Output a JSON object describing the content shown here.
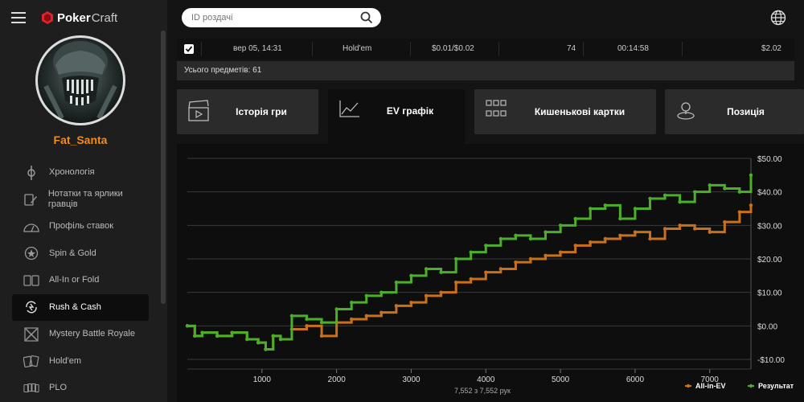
{
  "app": {
    "logo_brand": "Poker",
    "logo_suffix": "Craft"
  },
  "user": {
    "name": "Fat_Santa"
  },
  "sidebar": {
    "items": [
      {
        "label": "Хронологія",
        "icon": "timeline-icon"
      },
      {
        "label": "Нотатки та ярлики гравців",
        "icon": "notes-icon"
      },
      {
        "label": "Профіль ставок",
        "icon": "gauge-icon"
      },
      {
        "label": "Spin & Gold",
        "icon": "spin-icon"
      },
      {
        "label": "All-In or Fold",
        "icon": "cards-icon"
      },
      {
        "label": "Rush & Cash",
        "icon": "rush-icon",
        "active": true
      },
      {
        "label": "Mystery Battle Royale",
        "icon": "mystery-icon"
      },
      {
        "label": "Hold'em",
        "icon": "holdem-icon"
      },
      {
        "label": "PLO",
        "icon": "plo-icon"
      }
    ]
  },
  "search": {
    "placeholder": "ID роздачі",
    "value": ""
  },
  "hand_row": {
    "checked": true,
    "date": "вер 05, 14:31",
    "game": "Hold'em",
    "stakes": "$0.01/$0.02",
    "hands": "74",
    "duration": "00:14:58",
    "result": "$2.02"
  },
  "total_items": "Усього предметів: 61",
  "tabs": [
    {
      "label": "Історія гри",
      "icon": "clapper-icon"
    },
    {
      "label": "EV графік",
      "icon": "line-chart-icon",
      "active": true
    },
    {
      "label": "Кишенькові картки",
      "icon": "grid-icon"
    },
    {
      "label": "Позиція",
      "icon": "position-icon"
    }
  ],
  "footer": {
    "hand_count": "7,552 з 7,552 рук"
  },
  "colors": {
    "accent": "#f28c1e",
    "ev_series": "#c8711a",
    "result_series": "#4caf2b"
  },
  "chart_data": {
    "type": "line",
    "xlim": [
      0,
      7552
    ],
    "ylim": [
      -10,
      50
    ],
    "x_ticks": [
      1000,
      2000,
      3000,
      4000,
      5000,
      6000,
      7000
    ],
    "y_ticks": [
      -10,
      0,
      10,
      20,
      30,
      40,
      50
    ],
    "y_tick_labels": [
      "-$10.00",
      "$0.00",
      "$10.00",
      "$20.00",
      "$30.00",
      "$40.00",
      "$50.00"
    ],
    "grid": true,
    "legend_position": "bottom-right",
    "series": [
      {
        "name": "All-in-EV",
        "color": "#c8711a",
        "x": [
          0,
          100,
          200,
          400,
          600,
          800,
          950,
          1050,
          1150,
          1250,
          1400,
          1600,
          1800,
          2000,
          2200,
          2400,
          2600,
          2800,
          3000,
          3200,
          3400,
          3600,
          3800,
          4000,
          4200,
          4400,
          4600,
          4800,
          5000,
          5200,
          5400,
          5600,
          5800,
          6000,
          6200,
          6400,
          6600,
          6800,
          7000,
          7200,
          7400,
          7552
        ],
        "values": [
          0,
          -3,
          -2,
          -3,
          -2,
          -4,
          -5,
          -7,
          -3,
          -4,
          -1,
          0,
          -3,
          1,
          2,
          3,
          4,
          6,
          7,
          9,
          10,
          13,
          14,
          16,
          17,
          19,
          20,
          21,
          22,
          24,
          25,
          26,
          27,
          28,
          26,
          29,
          30,
          29,
          28,
          31,
          34,
          36
        ]
      },
      {
        "name": "Результат",
        "color": "#4caf2b",
        "x": [
          0,
          100,
          200,
          400,
          600,
          800,
          950,
          1050,
          1150,
          1250,
          1400,
          1600,
          1800,
          2000,
          2200,
          2400,
          2600,
          2800,
          3000,
          3200,
          3400,
          3600,
          3800,
          4000,
          4200,
          4400,
          4600,
          4800,
          5000,
          5200,
          5400,
          5600,
          5800,
          6000,
          6200,
          6400,
          6600,
          6800,
          7000,
          7200,
          7400,
          7552
        ],
        "values": [
          0,
          -3,
          -2,
          -3,
          -2,
          -4,
          -5,
          -7,
          -3,
          -4,
          3,
          2,
          1,
          5,
          7,
          9,
          10,
          13,
          15,
          17,
          16,
          20,
          22,
          24,
          26,
          27,
          26,
          28,
          30,
          32,
          35,
          36,
          32,
          35,
          38,
          39,
          37,
          40,
          42,
          41,
          40,
          45
        ]
      }
    ]
  }
}
